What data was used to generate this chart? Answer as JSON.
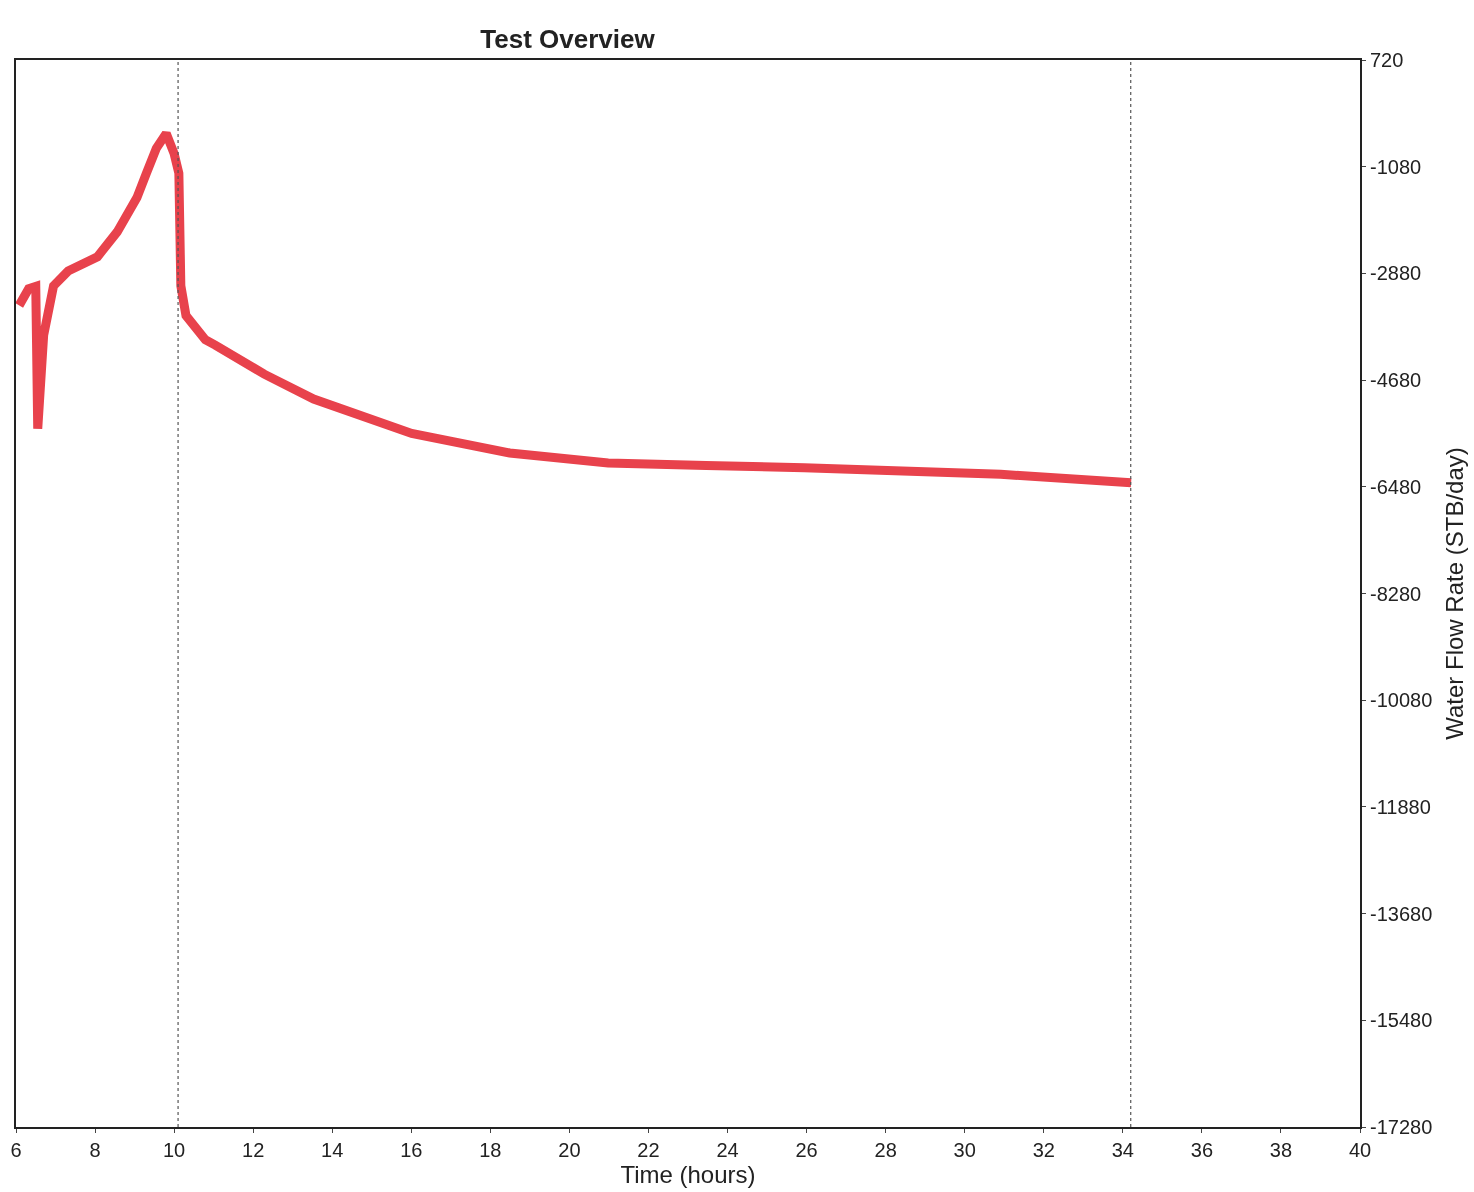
{
  "chart_data": {
    "type": "line",
    "title": "Test Overview",
    "xlabel": "Time (hours)",
    "ylabel": "Water Flow Rate (STB/day)",
    "xlim": [
      6,
      40
    ],
    "xticks": [
      6,
      8,
      10,
      12,
      14,
      16,
      18,
      20,
      22,
      24,
      26,
      28,
      30,
      32,
      34,
      36,
      38,
      40
    ],
    "ylim": [
      -17280,
      720
    ],
    "yticks": [
      720,
      -1080,
      -2880,
      -4680,
      -6480,
      -8280,
      -10080,
      -11880,
      -13680,
      -15480,
      -17280
    ],
    "marker": "none",
    "line_style": "solid",
    "ref_lines": [
      {
        "axis": "x",
        "value": 10.1,
        "color": "#555555",
        "line_style": "dotted"
      },
      {
        "axis": "x",
        "value": 34.2,
        "color": "#555555",
        "line_style": "dotted"
      }
    ],
    "series": [
      {
        "color": "#e8424c",
        "x": [
          6.08,
          6.32,
          6.5,
          6.55,
          6.7,
          6.95,
          7.32,
          8.06,
          8.56,
          9.06,
          9.3,
          9.55,
          9.8,
          10.0,
          10.12,
          10.17,
          10.3,
          10.79,
          11.04,
          12.28,
          13.53,
          16.01,
          18.49,
          20.98,
          23.46,
          25.94,
          30.91,
          34.21
        ],
        "values": [
          -3420,
          -3140,
          -3100,
          -5500,
          -3920,
          -3090,
          -2840,
          -2600,
          -2180,
          -1600,
          -1190,
          -770,
          -520,
          -860,
          -1190,
          -3090,
          -3590,
          -4000,
          -4090,
          -4580,
          -5000,
          -5580,
          -5910,
          -6080,
          -6120,
          -6160,
          -6270,
          -6410
        ]
      }
    ]
  }
}
